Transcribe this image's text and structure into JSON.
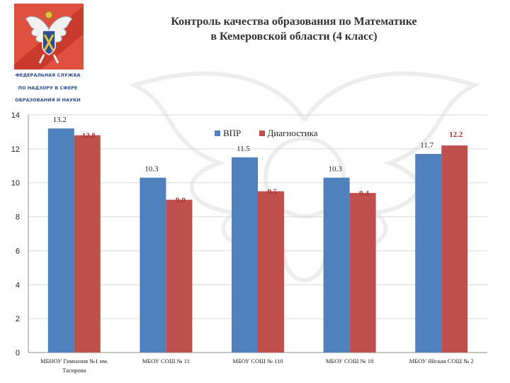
{
  "header": {
    "title_line1": "Контроль качества образования по Математике",
    "title_line2": "в Кемеровской области (4 класс)"
  },
  "logo": {
    "agency_lines": [
      "ФЕДЕРАЛЬНАЯ СЛУЖБА",
      "ПО НАДЗОРУ В СФЕРЕ",
      "ОБРАЗОВАНИЯ И НАУКИ"
    ],
    "brand_color": "#e0503e"
  },
  "chart_data": {
    "type": "bar",
    "title": "Контроль качества образования по Математике в Кемеровской области (4 класс)",
    "categories": [
      [
        "МБНОУ Гимназия №1 им.",
        "Тасирова"
      ],
      [
        "МБОУ СОШ № 11"
      ],
      [
        "МБОУ СОШ № 110"
      ],
      [
        "МБОУ СОШ № 18"
      ],
      [
        "МБОУ Яйская СОШ № 2"
      ]
    ],
    "series": [
      {
        "name": "ВПР",
        "color": "#4f81bd",
        "values": [
          13.2,
          10.3,
          11.5,
          10.3,
          11.7
        ],
        "labels": [
          "13.2",
          "10.3",
          "11.5",
          "10.3",
          "11.7"
        ]
      },
      {
        "name": "Диагностика",
        "color": "#c0504d",
        "values": [
          12.8,
          9.0,
          9.5,
          9.4,
          12.2
        ],
        "labels": [
          "12.8",
          "9.0",
          "9.5",
          "9.4",
          "12.2"
        ]
      }
    ],
    "yticks": [
      "0",
      "2",
      "4",
      "6",
      "8",
      "10",
      "12",
      "14"
    ],
    "ylim": [
      0,
      14
    ],
    "grid": true,
    "legend_position": "top"
  }
}
